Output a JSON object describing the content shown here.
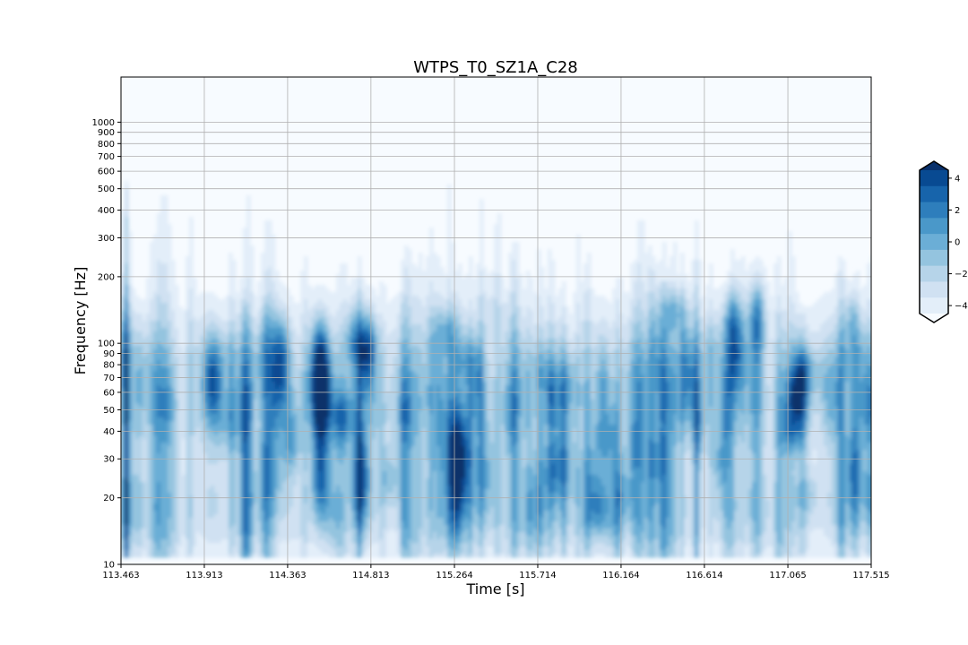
{
  "chart_data": {
    "type": "heatmap",
    "title": "WTPS_T0_SZ1A_C28",
    "xlabel": "Time [s]",
    "ylabel": "Frequency [Hz]",
    "x_ticks": [
      "113.463",
      "113.913",
      "114.363",
      "114.813",
      "115.264",
      "115.714",
      "116.164",
      "116.614",
      "117.065",
      "117.515"
    ],
    "xlim": [
      113.463,
      117.515
    ],
    "y_scale": "log",
    "y_ticks": [
      10,
      20,
      30,
      40,
      50,
      60,
      70,
      80,
      90,
      100,
      200,
      300,
      400,
      500,
      600,
      700,
      800,
      900,
      1000
    ],
    "y_tick_labels": [
      "10",
      "20",
      "30",
      "40",
      "50",
      "60",
      "70",
      "80",
      "90",
      "100",
      "200",
      "300",
      "400",
      "500",
      "600",
      "700",
      "800",
      "900",
      "1000"
    ],
    "ylim": [
      10,
      1600
    ],
    "grid": true,
    "colormap": "Blues",
    "colorbar": {
      "ticks": [
        4,
        2,
        0,
        -2,
        -4
      ],
      "tick_labels": [
        "4",
        "2",
        "0",
        "−2",
        "−4"
      ],
      "range": [
        -5.5,
        5.5
      ],
      "extend": "both",
      "levels": 11
    },
    "hotspots_description_free": [
      {
        "t": 114.54,
        "f": 55,
        "v": 5.5
      },
      {
        "t": 114.54,
        "f": 80,
        "v": 4.2
      },
      {
        "t": 114.54,
        "f": 25,
        "v": 3.2
      },
      {
        "t": 114.8,
        "f": 90,
        "v": 3.5
      },
      {
        "t": 114.76,
        "f": 25,
        "v": 3.8
      },
      {
        "t": 113.96,
        "f": 70,
        "v": 3.2
      },
      {
        "t": 114.33,
        "f": 85,
        "v": 2.9
      },
      {
        "t": 116.78,
        "f": 95,
        "v": 2.9
      },
      {
        "t": 117.13,
        "f": 60,
        "v": 3.0
      },
      {
        "t": 115.29,
        "f": 28,
        "v": 2.6
      },
      {
        "t": 116.9,
        "f": 130,
        "v": 2.6
      }
    ]
  },
  "colors": {
    "low": "#f7fbff",
    "high": "#08306b",
    "grid": "#b0b0b0"
  }
}
